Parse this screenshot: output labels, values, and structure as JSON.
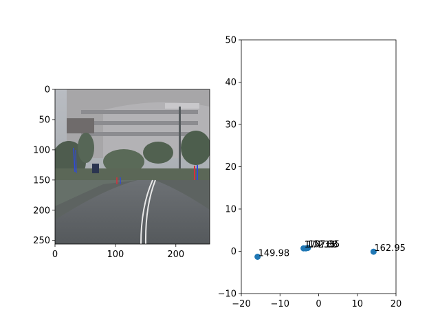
{
  "chart_data": [
    {
      "type": "image",
      "title": "",
      "xlabel": "",
      "ylabel": "",
      "xlim": [
        0,
        256
      ],
      "ylim": [
        256,
        0
      ],
      "xticks": [
        "0",
        "100",
        "200"
      ],
      "yticks": [
        "0",
        "50",
        "100",
        "150",
        "200",
        "250"
      ]
    },
    {
      "type": "scatter",
      "title": "",
      "xlabel": "",
      "ylabel": "",
      "xlim": [
        -20,
        20
      ],
      "ylim": [
        -10,
        50
      ],
      "xticks": [
        "−20",
        "−10",
        "0",
        "10",
        "20"
      ],
      "yticks": [
        "−10",
        "0",
        "10",
        "20",
        "30",
        "40",
        "50"
      ],
      "series": [
        {
          "name": "points",
          "color": "#1f77b4",
          "points": [
            {
              "x": -15.8,
              "y": -1.3,
              "label": "149.98"
            },
            {
              "x": -3.9,
              "y": 0.7,
              "label": "174.35"
            },
            {
              "x": -3.3,
              "y": 0.7,
              "label": "172.88"
            },
            {
              "x": -2.8,
              "y": 0.8,
              "label": "157.35"
            },
            {
              "x": 14.2,
              "y": -0.1,
              "label": "162.95"
            }
          ]
        }
      ]
    }
  ]
}
